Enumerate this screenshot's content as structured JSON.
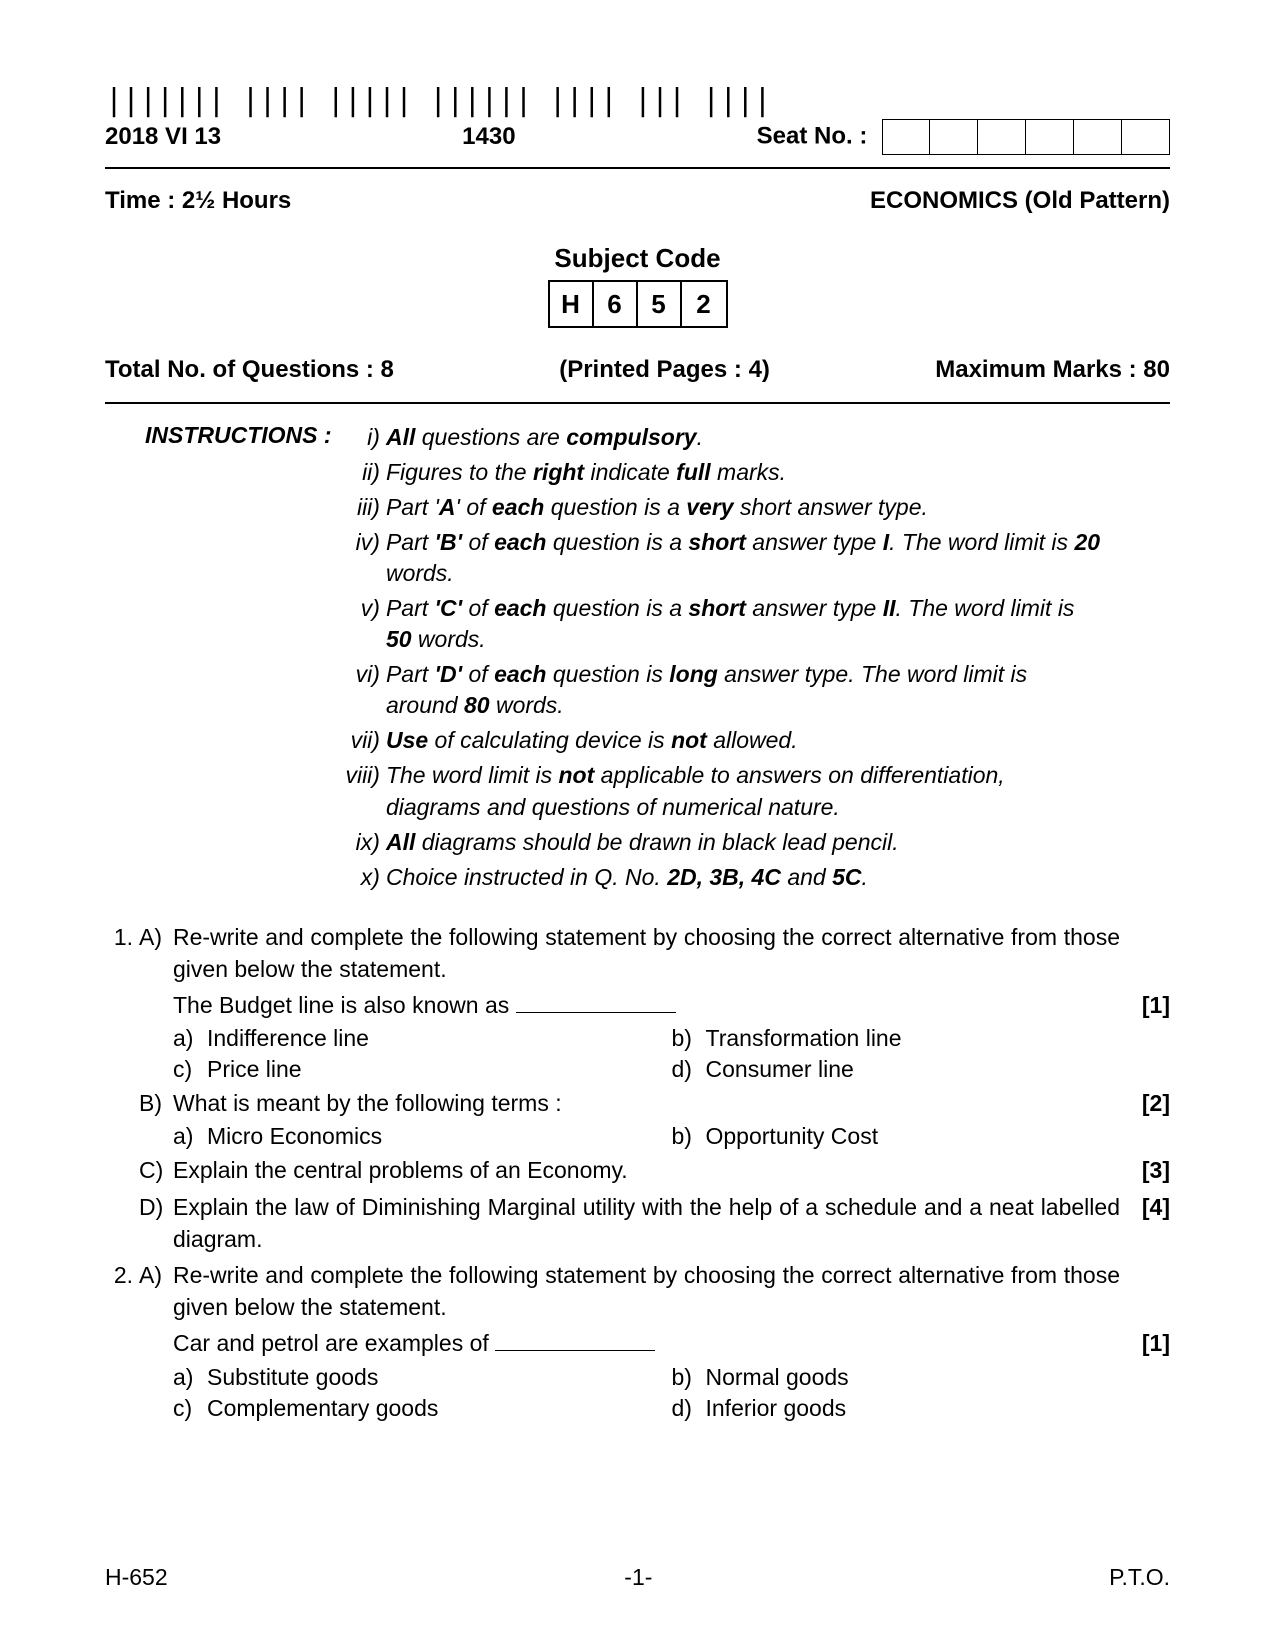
{
  "header": {
    "date_code": "2018 VI 13",
    "time_code": "1430",
    "seat_label": "Seat No. :"
  },
  "row2": {
    "time": "Time : 2½ Hours",
    "subject": "ECONOMICS (Old Pattern)"
  },
  "subject_code": {
    "title": "Subject Code",
    "chars": [
      "H",
      "6",
      "5",
      "2"
    ]
  },
  "info": {
    "total_q": "Total No. of Questions : 8",
    "pages": "(Printed Pages : 4)",
    "max_marks": "Maximum Marks : 80"
  },
  "instructions_label": "INSTRUCTIONS :",
  "instructions": [
    {
      "n": "i)",
      "html": "<span class='b'>All</span> questions are <span class='b'>compulsory</span>."
    },
    {
      "n": "ii)",
      "html": "Figures to the <span class='b'>right</span> indicate <span class='b'>full</span> marks."
    },
    {
      "n": "iii)",
      "html": "Part '<span class='b'>A</span>' of <span class='b'>each</span> question is a <span class='b'>very</span> short answer type."
    },
    {
      "n": "iv)",
      "html": "Part <span class='b'>'B'</span> of <span class='b'>each</span> question is a <span class='b'>short</span> answer type <span class='b'>I</span>. The word limit is <span class='b'>20</span> words."
    },
    {
      "n": "v)",
      "html": "Part <span class='b'>'C'</span> of <span class='b'>each</span> question is a <span class='b'>short</span> answer type <span class='b'>II</span>. The word limit is <span class='b'>50</span> words."
    },
    {
      "n": "vi)",
      "html": "Part <span class='b'>'D'</span> of <span class='b'>each</span> question is <span class='b'>long</span> answer type. The word limit is around <span class='b'>80</span> words."
    },
    {
      "n": "vii)",
      "html": "<span class='b'>Use</span> of calculating device is <span class='b'>not</span> allowed."
    },
    {
      "n": "viii)",
      "html": "The word limit is <span class='b'>not</span> applicable to answers on differentiation, diagrams and questions of numerical nature."
    },
    {
      "n": "ix)",
      "html": "<span class='b'>All</span> diagrams should be drawn in black lead pencil."
    },
    {
      "n": "x)",
      "html": "Choice instructed in Q. No. <span class='b'>2D, 3B, 4C</span> and <span class='b'>5C</span>."
    }
  ],
  "q1": {
    "A_text": "Re-write and complete the following statement by choosing the correct alternative from those given below the statement.",
    "A_stem": "The Budget line is also known as ",
    "A_marks": "[1]",
    "A_opts": {
      "a": "Indifference line",
      "b": "Transformation line",
      "c": "Price line",
      "d": "Consumer line"
    },
    "B_text": "What is meant by the following terms :",
    "B_marks": "[2]",
    "B_opts": {
      "a": "Micro Economics",
      "b": "Opportunity Cost"
    },
    "C_text": "Explain the central problems of an Economy.",
    "C_marks": "[3]",
    "D_text": "Explain the law of Diminishing Marginal utility with the help of a schedule and a neat labelled diagram.",
    "D_marks": "[4]"
  },
  "q2": {
    "A_text": "Re-write and complete the following statement by choosing the correct alternative from those given below the statement.",
    "A_stem": "Car and petrol are examples of ",
    "A_marks": "[1]",
    "A_opts": {
      "a": "Substitute goods",
      "b": "Normal goods",
      "c": "Complementary goods",
      "d": "Inferior goods"
    }
  },
  "footer": {
    "left": "H-652",
    "center": "-1-",
    "right": "P.T.O."
  },
  "opt_labels": {
    "a": "a)",
    "b": "b)",
    "c": "c)",
    "d": "d)"
  },
  "qnums": {
    "1": "1.",
    "2": "2."
  },
  "parts": {
    "A": "A)",
    "B": "B)",
    "C": "C)",
    "D": "D)"
  }
}
